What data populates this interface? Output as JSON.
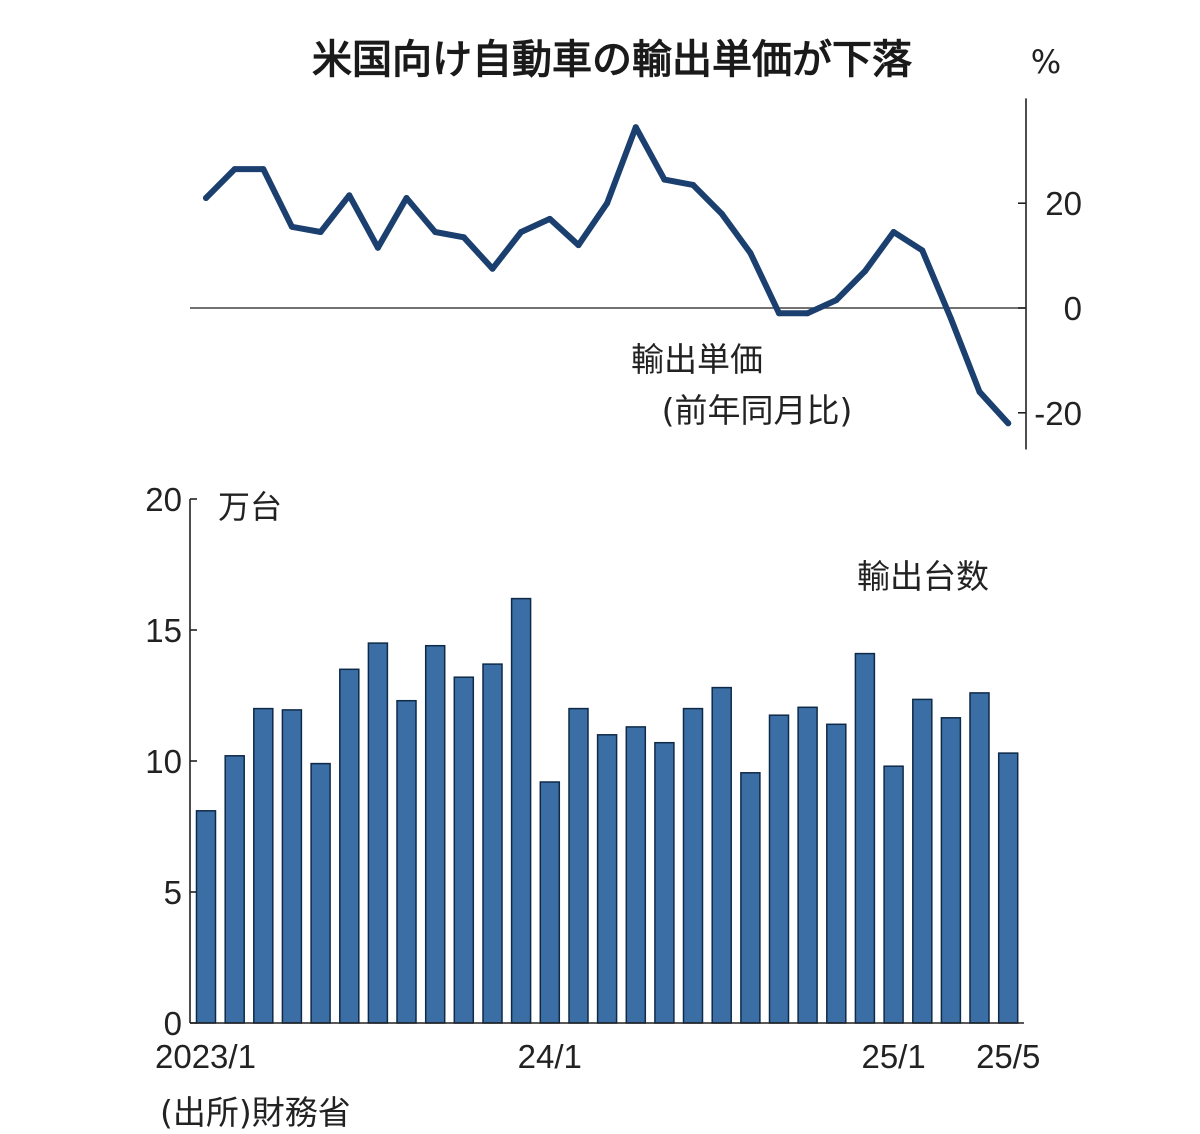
{
  "title": "米国向け自動車の輸出単価が下落",
  "source": "(出所)財務省",
  "chart_data": [
    {
      "type": "line",
      "series_label": "輸出単価",
      "series_sublabel": "(前年同月比)",
      "unit": "%",
      "ylim": [
        -27,
        40
      ],
      "yticks": [
        20,
        0,
        -20
      ],
      "ytick_labels": [
        "20",
        "0",
        "-20"
      ],
      "categories": [
        "2023/1",
        "2023/2",
        "2023/3",
        "2023/4",
        "2023/5",
        "2023/6",
        "2023/7",
        "2023/8",
        "2023/9",
        "2023/10",
        "2023/11",
        "2023/12",
        "2024/1",
        "2024/2",
        "2024/3",
        "2024/4",
        "2024/5",
        "2024/6",
        "2024/7",
        "2024/8",
        "2024/9",
        "2024/10",
        "2024/11",
        "2024/12",
        "2025/1",
        "2025/2",
        "2025/3",
        "2025/4",
        "2025/5"
      ],
      "values": [
        21,
        26.5,
        26.5,
        15.5,
        14.5,
        21.5,
        11.5,
        21,
        14.5,
        13.5,
        7.5,
        14.5,
        17,
        12,
        20,
        34.5,
        24.5,
        23.5,
        18,
        10.5,
        -1,
        -1,
        1.5,
        7,
        14.5,
        11,
        -2,
        -16,
        -22
      ]
    },
    {
      "type": "bar",
      "series_label": "輸出台数",
      "unit": "万台",
      "ylim": [
        0,
        20
      ],
      "yticks": [
        20,
        15,
        10,
        5,
        0
      ],
      "ytick_labels": [
        "20",
        "15",
        "10",
        "5",
        "0"
      ],
      "xtick_labels": [
        "2023/1",
        "24/1",
        "25/1",
        "25/5"
      ],
      "xtick_index": [
        0,
        12,
        24,
        28
      ],
      "categories": [
        "2023/1",
        "2023/2",
        "2023/3",
        "2023/4",
        "2023/5",
        "2023/6",
        "2023/7",
        "2023/8",
        "2023/9",
        "2023/10",
        "2023/11",
        "2023/12",
        "2024/1",
        "2024/2",
        "2024/3",
        "2024/4",
        "2024/5",
        "2024/6",
        "2024/7",
        "2024/8",
        "2024/9",
        "2024/10",
        "2024/11",
        "2024/12",
        "2025/1",
        "2025/2",
        "2025/3",
        "2025/4",
        "2025/5"
      ],
      "values": [
        8.1,
        10.2,
        12.0,
        11.95,
        9.9,
        13.5,
        14.5,
        12.3,
        14.4,
        13.2,
        13.7,
        16.2,
        9.2,
        12.0,
        11.0,
        11.3,
        10.7,
        12.0,
        12.8,
        9.55,
        11.75,
        12.05,
        11.4,
        14.1,
        9.8,
        12.35,
        11.65,
        12.6,
        10.3
      ]
    }
  ],
  "colors": {
    "line": "#1b3f6e",
    "bar_fill": "#3a6ea5",
    "bar_edge": "#0f2a48"
  }
}
